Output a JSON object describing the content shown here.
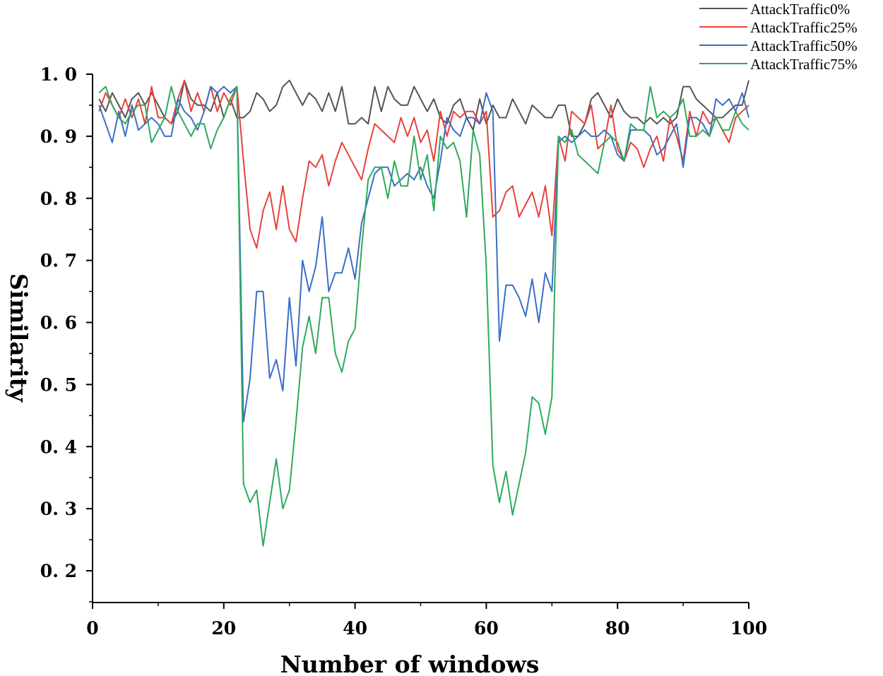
{
  "chart_data": {
    "type": "line",
    "title": "",
    "xlabel": "Number of windows",
    "ylabel": "Similarity",
    "xlim": [
      0,
      100
    ],
    "ylim": [
      0.15,
      1.0
    ],
    "x_ticks": [
      0,
      20,
      40,
      60,
      80,
      100
    ],
    "x_tick_labels": [
      "0",
      "20",
      "40",
      "60",
      "80",
      "100"
    ],
    "y_ticks": [
      0.2,
      0.3,
      0.4,
      0.5,
      0.6,
      0.7,
      0.8,
      0.9,
      1.0
    ],
    "y_tick_labels": [
      "0. 2",
      "0. 3",
      "0. 4",
      "0. 5",
      "0. 6",
      "0. 7",
      "0. 8",
      "0. 9",
      "1. 0"
    ],
    "grid": false,
    "legend_position": "top-right",
    "x": [
      1,
      2,
      3,
      4,
      5,
      6,
      7,
      8,
      9,
      10,
      11,
      12,
      13,
      14,
      15,
      16,
      17,
      18,
      19,
      20,
      21,
      22,
      23,
      24,
      25,
      26,
      27,
      28,
      29,
      30,
      31,
      32,
      33,
      34,
      35,
      36,
      37,
      38,
      39,
      40,
      41,
      42,
      43,
      44,
      45,
      46,
      47,
      48,
      49,
      50,
      51,
      52,
      53,
      54,
      55,
      56,
      57,
      58,
      59,
      60,
      61,
      62,
      63,
      64,
      65,
      66,
      67,
      68,
      69,
      70,
      71,
      72,
      73,
      74,
      75,
      76,
      77,
      78,
      79,
      80,
      81,
      82,
      83,
      84,
      85,
      86,
      87,
      88,
      89,
      90,
      91,
      92,
      93,
      94,
      95,
      96,
      97,
      98,
      99,
      100
    ],
    "series": [
      {
        "name": "AttackTraffic0%",
        "color": "#555555",
        "values": [
          0.96,
          0.94,
          0.97,
          0.95,
          0.93,
          0.96,
          0.97,
          0.95,
          0.97,
          0.95,
          0.93,
          0.92,
          0.94,
          0.99,
          0.96,
          0.95,
          0.95,
          0.94,
          0.97,
          0.93,
          0.96,
          0.93,
          0.93,
          0.94,
          0.97,
          0.96,
          0.94,
          0.95,
          0.98,
          0.99,
          0.97,
          0.95,
          0.97,
          0.96,
          0.94,
          0.97,
          0.94,
          0.98,
          0.92,
          0.92,
          0.93,
          0.92,
          0.98,
          0.94,
          0.98,
          0.96,
          0.95,
          0.95,
          0.98,
          0.96,
          0.94,
          0.96,
          0.93,
          0.92,
          0.95,
          0.96,
          0.93,
          0.91,
          0.96,
          0.92,
          0.95,
          0.93,
          0.93,
          0.96,
          0.94,
          0.92,
          0.95,
          0.94,
          0.93,
          0.93,
          0.95,
          0.95,
          0.9,
          0.9,
          0.92,
          0.96,
          0.97,
          0.95,
          0.93,
          0.96,
          0.94,
          0.93,
          0.93,
          0.92,
          0.93,
          0.92,
          0.93,
          0.92,
          0.93,
          0.98,
          0.98,
          0.96,
          0.95,
          0.94,
          0.93,
          0.93,
          0.94,
          0.95,
          0.95,
          0.99
        ]
      },
      {
        "name": "AttackTraffic25%",
        "color": "#e8413b",
        "values": [
          0.94,
          0.97,
          0.95,
          0.93,
          0.96,
          0.93,
          0.96,
          0.92,
          0.98,
          0.93,
          0.93,
          0.92,
          0.96,
          0.99,
          0.94,
          0.97,
          0.94,
          0.98,
          0.94,
          0.97,
          0.95,
          0.98,
          0.86,
          0.75,
          0.72,
          0.78,
          0.81,
          0.75,
          0.82,
          0.75,
          0.73,
          0.8,
          0.86,
          0.85,
          0.87,
          0.82,
          0.86,
          0.89,
          0.87,
          0.85,
          0.83,
          0.88,
          0.92,
          0.91,
          0.9,
          0.89,
          0.93,
          0.9,
          0.93,
          0.89,
          0.91,
          0.86,
          0.94,
          0.9,
          0.94,
          0.93,
          0.94,
          0.94,
          0.92,
          0.94,
          0.77,
          0.78,
          0.81,
          0.82,
          0.77,
          0.79,
          0.81,
          0.77,
          0.82,
          0.74,
          0.9,
          0.86,
          0.94,
          0.93,
          0.92,
          0.95,
          0.88,
          0.89,
          0.95,
          0.88,
          0.86,
          0.89,
          0.88,
          0.85,
          0.88,
          0.9,
          0.86,
          0.93,
          0.9,
          0.86,
          0.94,
          0.9,
          0.94,
          0.92,
          0.93,
          0.91,
          0.89,
          0.93,
          0.94,
          0.95
        ]
      },
      {
        "name": "AttackTraffic50%",
        "color": "#3a6fc4",
        "values": [
          0.95,
          0.92,
          0.89,
          0.94,
          0.9,
          0.95,
          0.91,
          0.92,
          0.93,
          0.92,
          0.9,
          0.9,
          0.96,
          0.94,
          0.93,
          0.91,
          0.94,
          0.98,
          0.97,
          0.98,
          0.97,
          0.98,
          0.44,
          0.51,
          0.65,
          0.65,
          0.51,
          0.54,
          0.49,
          0.64,
          0.53,
          0.7,
          0.65,
          0.69,
          0.77,
          0.65,
          0.68,
          0.68,
          0.72,
          0.67,
          0.76,
          0.8,
          0.84,
          0.85,
          0.85,
          0.82,
          0.83,
          0.84,
          0.83,
          0.85,
          0.82,
          0.8,
          0.86,
          0.93,
          0.91,
          0.9,
          0.93,
          0.93,
          0.92,
          0.97,
          0.94,
          0.57,
          0.66,
          0.66,
          0.64,
          0.61,
          0.67,
          0.6,
          0.68,
          0.65,
          0.89,
          0.9,
          0.89,
          0.9,
          0.91,
          0.9,
          0.9,
          0.91,
          0.9,
          0.87,
          0.86,
          0.91,
          0.91,
          0.91,
          0.9,
          0.87,
          0.88,
          0.9,
          0.92,
          0.85,
          0.93,
          0.93,
          0.92,
          0.9,
          0.96,
          0.95,
          0.96,
          0.94,
          0.97,
          0.93
        ]
      },
      {
        "name": "AttackTraffic75%",
        "color": "#2eaa5c",
        "values": [
          0.97,
          0.98,
          0.95,
          0.93,
          0.92,
          0.94,
          0.95,
          0.95,
          0.89,
          0.91,
          0.93,
          0.98,
          0.94,
          0.92,
          0.9,
          0.92,
          0.92,
          0.88,
          0.91,
          0.93,
          0.96,
          0.98,
          0.34,
          0.31,
          0.33,
          0.24,
          0.31,
          0.38,
          0.3,
          0.33,
          0.44,
          0.56,
          0.61,
          0.55,
          0.64,
          0.64,
          0.55,
          0.52,
          0.57,
          0.59,
          0.72,
          0.83,
          0.85,
          0.85,
          0.8,
          0.86,
          0.82,
          0.82,
          0.9,
          0.83,
          0.87,
          0.78,
          0.9,
          0.88,
          0.89,
          0.86,
          0.77,
          0.91,
          0.87,
          0.69,
          0.37,
          0.31,
          0.36,
          0.29,
          0.34,
          0.39,
          0.48,
          0.47,
          0.42,
          0.48,
          0.9,
          0.89,
          0.91,
          0.87,
          0.86,
          0.85,
          0.84,
          0.89,
          0.9,
          0.89,
          0.86,
          0.92,
          0.91,
          0.91,
          0.98,
          0.93,
          0.94,
          0.93,
          0.94,
          0.96,
          0.9,
          0.9,
          0.91,
          0.9,
          0.93,
          0.91,
          0.91,
          0.94,
          0.92,
          0.91
        ]
      }
    ]
  }
}
